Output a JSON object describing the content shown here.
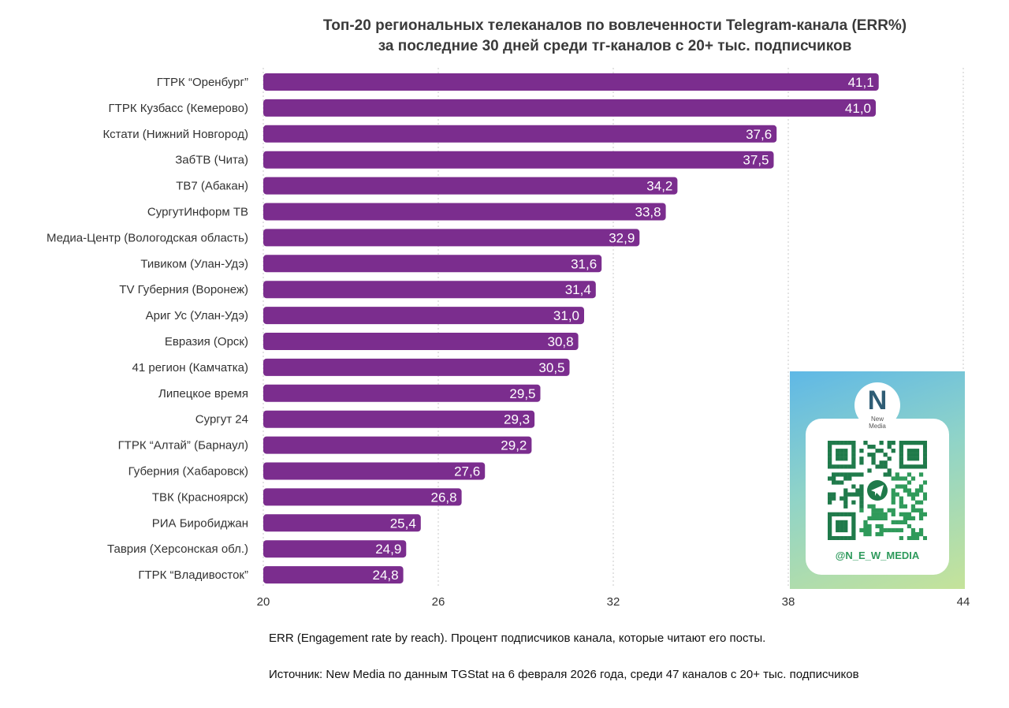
{
  "chart_data": {
    "type": "bar",
    "orientation": "horizontal",
    "title_lines": [
      "Топ-20 региональных телеканалов по вовлеченности Telegram-канала (ERR%)",
      "за последние 30 дней среди тг-каналов с 20+ тыс. подписчиков"
    ],
    "categories": [
      "ГТРК “Оренбург”",
      "ГТРК Кузбасс (Кемерово)",
      "Кстати (Нижний Новгород)",
      "ЗабТВ (Чита)",
      "ТВ7 (Абакан)",
      "СургутИнформ ТВ",
      "Медиа-Центр (Вологодская область)",
      "Тивиком (Улан-Удэ)",
      "TV Губерния (Воронеж)",
      "Ариг Ус (Улан-Удэ)",
      "Евразия (Орск)",
      "41 регион (Камчатка)",
      "Липецкое время",
      "Сургут 24",
      "ГТРК “Алтай” (Барнаул)",
      "Губерния (Хабаровск)",
      "ТВК (Красноярск)",
      "РИА Биробиджан",
      "Таврия (Херсонская обл.)",
      "ГТРК “Владивосток”"
    ],
    "values": [
      41.1,
      41.0,
      37.6,
      37.5,
      34.2,
      33.8,
      32.9,
      31.6,
      31.4,
      31.0,
      30.8,
      30.5,
      29.5,
      29.3,
      29.2,
      27.6,
      26.8,
      25.4,
      24.9,
      24.8
    ],
    "value_labels": [
      "41,1",
      "41,0",
      "37,6",
      "37,5",
      "34,2",
      "33,8",
      "32,9",
      "31,6",
      "31,4",
      "31,0",
      "30,8",
      "30,5",
      "29,5",
      "29,3",
      "29,2",
      "27,6",
      "26,8",
      "25,4",
      "24,9",
      "24,8"
    ],
    "xlim": [
      20,
      44
    ],
    "xticks": [
      20,
      26,
      32,
      38,
      44
    ],
    "xtick_labels": [
      "20",
      "26",
      "32",
      "38",
      "44"
    ],
    "grid": "vertical dotted",
    "bar_color": "#7b2d8e"
  },
  "notes": {
    "definition": "ERR (Engagement rate by reach). Процент подписчиков канала, которые читают его посты.",
    "source": "Источник: New Media по данным TGStat на 6 февраля 2026 года, среди 47 каналов с 20+ тыс. подписчиков"
  },
  "qr_card": {
    "logo_letter": "N",
    "logo_text_1": "New",
    "logo_text_2": "Media",
    "handle": "@N_E_W_MEDIA",
    "icon": "telegram-icon"
  }
}
